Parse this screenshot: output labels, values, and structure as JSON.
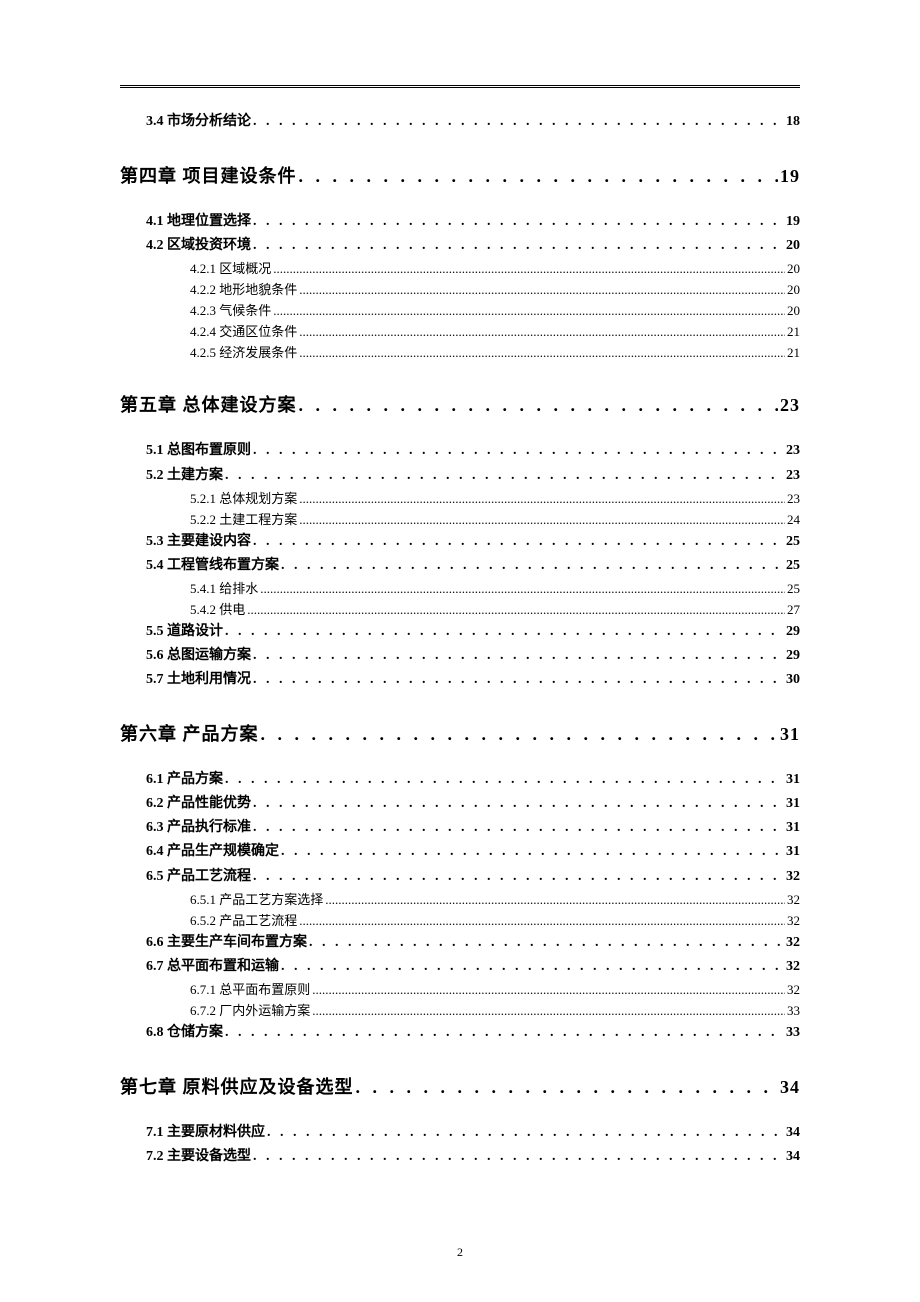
{
  "leader_dot_l1": ". . . . . . . . . . . . . . . . . . . . . . . . . . . . . . . . . . . . . . . . . . . . . . . . . . . . . . . . . . . . . . . . . . . . . . . . . . . . . . . . . . . . . . . . . . . . . . . . . . . . . . . . . . . . . . . . . . . . . . . . . . . . . . . . . . . . . . . . . . . .",
  "leader_dot_l2": " . . . . . . . . . . . . . . . . . . . . . . . . . . . . . . . . . . . . . . . . . . . . . . . . . . . . . . . . . . . . . . . . . . . . . . . . . . . . . . . . . . . . . . . . . . . . . . . . . . . . . . . . . . . . . . . . . . . . . . . . . . . . . . . . . . . . . . . . . . . . . . . . . . . . . . . . . . . . . . . . . . . . . . . . . . . . . . . . . . . . . . . . . . . . . . . . . . . .",
  "leader_dot_l3": "..............................................................................................................................................................................................................................................................................................................",
  "page_number": "2",
  "entries": [
    {
      "level": 2,
      "title": "3.4 市场分析结论",
      "page": "18"
    },
    {
      "level": 1,
      "title": "第四章  项目建设条件",
      "page": "19"
    },
    {
      "level": 2,
      "title": "4.1 地理位置选择",
      "page": "19"
    },
    {
      "level": 2,
      "title": "4.2 区域投资环境",
      "page": "20"
    },
    {
      "level": 3,
      "title": "4.2.1 区域概况",
      "page": "20"
    },
    {
      "level": 3,
      "title": "4.2.2 地形地貌条件",
      "page": "20"
    },
    {
      "level": 3,
      "title": "4.2.3 气候条件",
      "page": "20"
    },
    {
      "level": 3,
      "title": "4.2.4 交通区位条件",
      "page": "21"
    },
    {
      "level": 3,
      "title": "4.2.5 经济发展条件",
      "page": "21"
    },
    {
      "level": 1,
      "title": "第五章  总体建设方案",
      "page": "23"
    },
    {
      "level": 2,
      "title": "5.1 总图布置原则",
      "page": "23"
    },
    {
      "level": 2,
      "title": "5.2 土建方案",
      "page": "23"
    },
    {
      "level": 3,
      "title": "5.2.1 总体规划方案",
      "page": "23"
    },
    {
      "level": 3,
      "title": "5.2.2 土建工程方案",
      "page": "24"
    },
    {
      "level": 2,
      "title": "5.3 主要建设内容",
      "page": "25"
    },
    {
      "level": 2,
      "title": "5.4 工程管线布置方案",
      "page": "25"
    },
    {
      "level": 3,
      "title": "5.4.1 给排水",
      "page": "25"
    },
    {
      "level": 3,
      "title": "5.4.2 供电",
      "page": "27"
    },
    {
      "level": 2,
      "title": "5.5 道路设计",
      "page": "29"
    },
    {
      "level": 2,
      "title": "5.6 总图运输方案",
      "page": "29"
    },
    {
      "level": 2,
      "title": "5.7 土地利用情况",
      "page": "30"
    },
    {
      "level": 1,
      "title": "第六章  产品方案",
      "page": "31"
    },
    {
      "level": 2,
      "title": "6.1 产品方案",
      "page": "31"
    },
    {
      "level": 2,
      "title": "6.2 产品性能优势",
      "page": "31"
    },
    {
      "level": 2,
      "title": "6.3 产品执行标准",
      "page": "31"
    },
    {
      "level": 2,
      "title": "6.4 产品生产规模确定",
      "page": "31"
    },
    {
      "level": 2,
      "title": "6.5 产品工艺流程",
      "page": "32"
    },
    {
      "level": 3,
      "title": "6.5.1 产品工艺方案选择",
      "page": "32"
    },
    {
      "level": 3,
      "title": "6.5.2 产品工艺流程",
      "page": "32"
    },
    {
      "level": 2,
      "title": "6.6 主要生产车间布置方案",
      "page": "32"
    },
    {
      "level": 2,
      "title": "6.7 总平面布置和运输",
      "page": "32"
    },
    {
      "level": 3,
      "title": "6.7.1 总平面布置原则",
      "page": "32"
    },
    {
      "level": 3,
      "title": "6.7.2 厂内外运输方案",
      "page": "33"
    },
    {
      "level": 2,
      "title": "6.8 仓储方案",
      "page": "33"
    },
    {
      "level": 1,
      "title": "第七章  原料供应及设备选型",
      "page": "34"
    },
    {
      "level": 2,
      "title": "7.1 主要原材料供应",
      "page": "34"
    },
    {
      "level": 2,
      "title": "7.2 主要设备选型",
      "page": "34"
    }
  ]
}
